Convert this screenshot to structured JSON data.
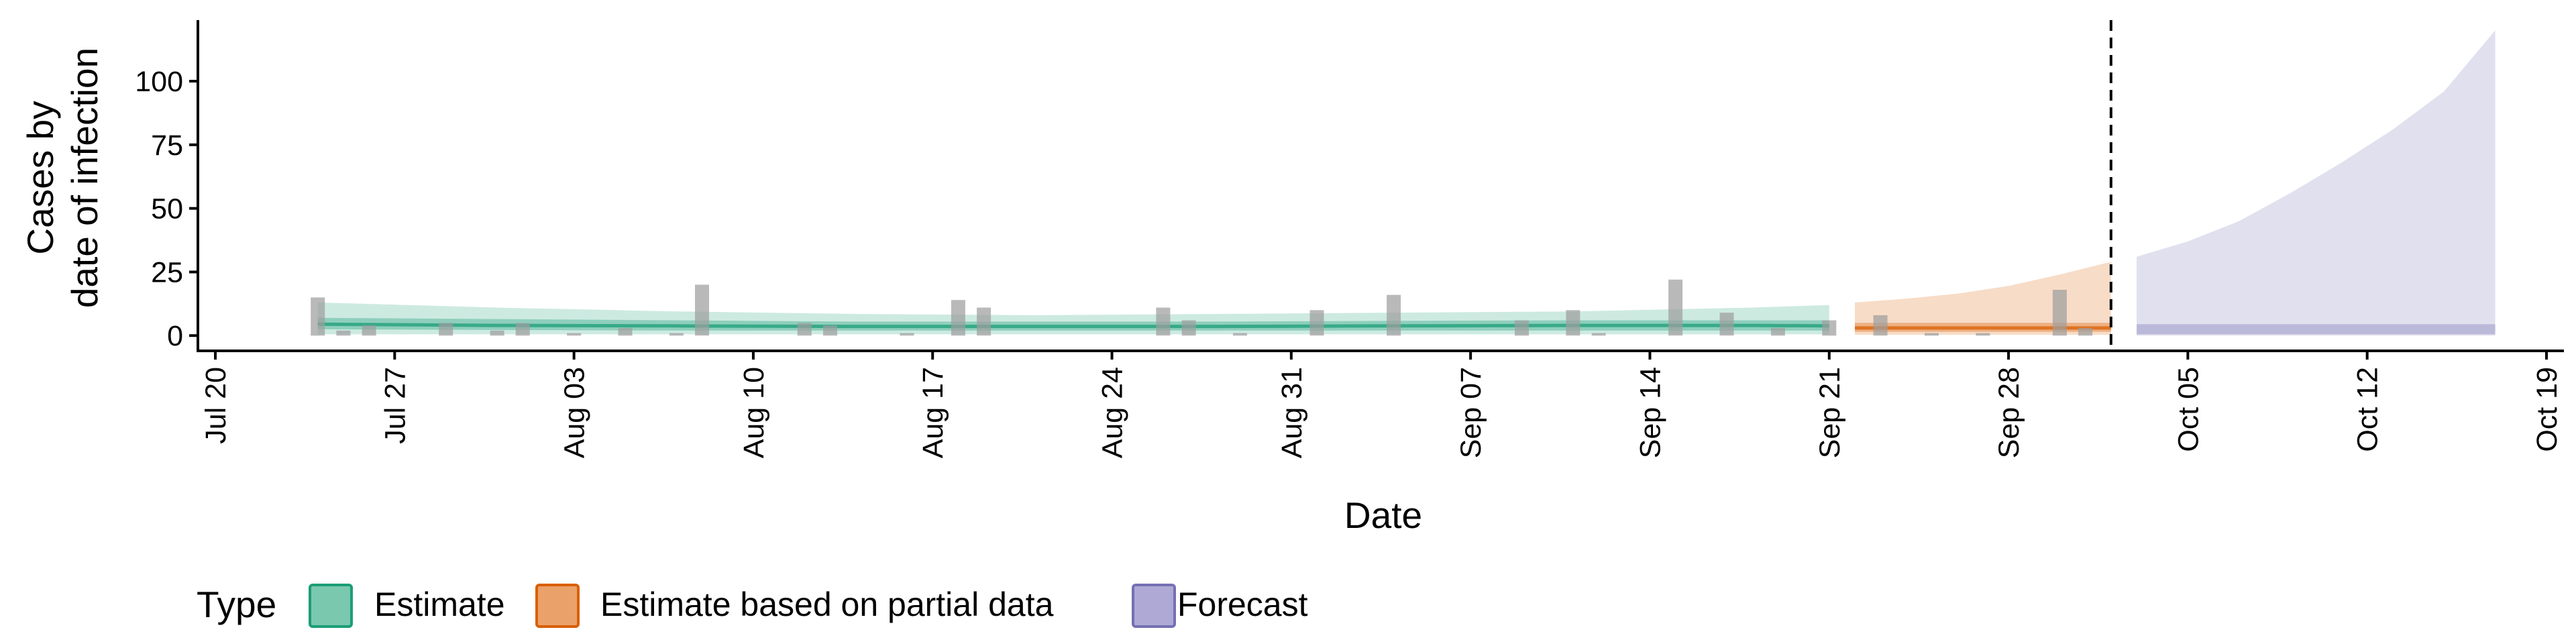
{
  "chart_data": {
    "type": "bar",
    "xlabel": "Date",
    "ylabel_lines": [
      "Cases by",
      "date of infection"
    ],
    "x_range": [
      "2020-07-20",
      "2020-10-19"
    ],
    "x_ticks": [
      {
        "date": "2020-07-20",
        "label": "Jul 20"
      },
      {
        "date": "2020-07-27",
        "label": "Jul 27"
      },
      {
        "date": "2020-08-03",
        "label": "Aug 03"
      },
      {
        "date": "2020-08-10",
        "label": "Aug 10"
      },
      {
        "date": "2020-08-17",
        "label": "Aug 17"
      },
      {
        "date": "2020-08-24",
        "label": "Aug 24"
      },
      {
        "date": "2020-08-31",
        "label": "Aug 31"
      },
      {
        "date": "2020-09-07",
        "label": "Sep 07"
      },
      {
        "date": "2020-09-14",
        "label": "Sep 14"
      },
      {
        "date": "2020-09-21",
        "label": "Sep 21"
      },
      {
        "date": "2020-09-28",
        "label": "Sep 28"
      },
      {
        "date": "2020-10-05",
        "label": "Oct 05"
      },
      {
        "date": "2020-10-12",
        "label": "Oct 12"
      },
      {
        "date": "2020-10-19",
        "label": "Oct 19"
      }
    ],
    "y_ticks": [
      0,
      25,
      50,
      75,
      100
    ],
    "ylim": [
      -6,
      124
    ],
    "vline_date": "2020-10-02",
    "bars": {
      "color": "#9e9e9e",
      "points": [
        [
          "2020-07-24",
          15
        ],
        [
          "2020-07-25",
          2
        ],
        [
          "2020-07-26",
          4
        ],
        [
          "2020-07-29",
          5
        ],
        [
          "2020-07-31",
          2
        ],
        [
          "2020-08-01",
          5
        ],
        [
          "2020-08-03",
          1
        ],
        [
          "2020-08-05",
          3
        ],
        [
          "2020-08-07",
          1
        ],
        [
          "2020-08-08",
          20
        ],
        [
          "2020-08-12",
          5
        ],
        [
          "2020-08-13",
          4
        ],
        [
          "2020-08-16",
          1
        ],
        [
          "2020-08-18",
          14
        ],
        [
          "2020-08-19",
          11
        ],
        [
          "2020-08-26",
          11
        ],
        [
          "2020-08-27",
          6
        ],
        [
          "2020-08-29",
          1
        ],
        [
          "2020-09-01",
          10
        ],
        [
          "2020-09-04",
          16
        ],
        [
          "2020-09-09",
          6
        ],
        [
          "2020-09-11",
          10
        ],
        [
          "2020-09-12",
          1
        ],
        [
          "2020-09-15",
          22
        ],
        [
          "2020-09-17",
          9
        ],
        [
          "2020-09-19",
          3
        ],
        [
          "2020-09-21",
          6
        ],
        [
          "2020-09-23",
          8
        ],
        [
          "2020-09-25",
          1
        ],
        [
          "2020-09-27",
          1
        ],
        [
          "2020-09-30",
          18
        ],
        [
          "2020-10-01",
          3
        ]
      ]
    },
    "bands": [
      {
        "type": "Estimate",
        "color": "#1b9e77",
        "dates": [
          "2020-07-24",
          "2020-07-31",
          "2020-08-07",
          "2020-08-14",
          "2020-08-21",
          "2020-08-28",
          "2020-09-04",
          "2020-09-11",
          "2020-09-18",
          "2020-09-21"
        ],
        "outer_upper": [
          13,
          11,
          9.5,
          8.5,
          8,
          8.5,
          9,
          9.5,
          11,
          12
        ],
        "outer_lower": [
          0.5,
          0.5,
          0.5,
          0.5,
          0.5,
          0.5,
          0.5,
          0.5,
          0.5,
          0.5
        ],
        "inner_upper": [
          7,
          6.5,
          6,
          5.5,
          5.5,
          5.5,
          5.8,
          6,
          6,
          6
        ],
        "inner_lower": [
          2.5,
          2.2,
          2,
          2,
          2,
          2,
          2,
          2,
          2,
          2
        ],
        "median": [
          4.5,
          4,
          3.8,
          3.6,
          3.6,
          3.6,
          3.8,
          4,
          4,
          3.8
        ]
      },
      {
        "type": "Estimate based on partial data",
        "color": "#d95f02",
        "dates": [
          "2020-09-22",
          "2020-09-24",
          "2020-09-26",
          "2020-09-28",
          "2020-09-30",
          "2020-10-02"
        ],
        "outer_upper": [
          13,
          14.5,
          16.5,
          19.5,
          24,
          29
        ],
        "outer_lower": [
          0.3,
          0.3,
          0.3,
          0.3,
          0.3,
          0.3
        ],
        "inner_upper": [
          5,
          5,
          5,
          5,
          5,
          5
        ],
        "inner_lower": [
          1.5,
          1.5,
          1.5,
          1.5,
          1.5,
          1.5
        ],
        "median": [
          3,
          3,
          3,
          3,
          3,
          3
        ]
      },
      {
        "type": "Forecast",
        "color": "#7570b3",
        "dates": [
          "2020-10-03",
          "2020-10-05",
          "2020-10-07",
          "2020-10-09",
          "2020-10-11",
          "2020-10-13",
          "2020-10-15",
          "2020-10-17"
        ],
        "outer_upper": [
          31,
          37,
          45,
          56,
          68,
          81,
          96,
          120
        ],
        "outer_lower": [
          0,
          0,
          0,
          0,
          0,
          0,
          0,
          0
        ],
        "inner_upper": [
          4.5,
          4.5,
          4.5,
          4.5,
          4.5,
          4.5,
          4.5,
          4.5
        ],
        "inner_lower": [
          0.5,
          0.5,
          0.5,
          0.5,
          0.5,
          0.5,
          0.5,
          0.5
        ],
        "median": null
      }
    ]
  },
  "legend": {
    "title": "Type",
    "items": [
      {
        "label": "Estimate",
        "fill": "#7ac8ae",
        "stroke": "#1b9e77"
      },
      {
        "label": "Estimate based on partial data",
        "fill": "#eba16a",
        "stroke": "#d95f02"
      },
      {
        "label": "Forecast",
        "fill": "#aeaad5",
        "stroke": "#7570b3"
      }
    ]
  }
}
